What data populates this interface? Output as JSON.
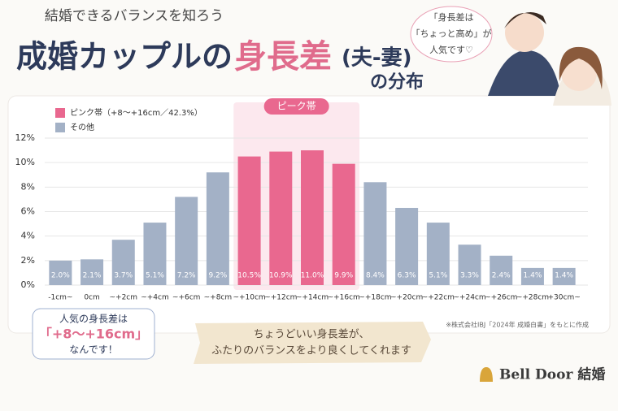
{
  "header": {
    "subtitle": "結婚できるバランスを知ろう",
    "title": "成婚カップルの",
    "title_accent": "身長差",
    "title_paren": "(夫-妻)",
    "title_end": "の分布"
  },
  "speech_bubble": [
    "「身長差は",
    "「ちょっと高め」が",
    "人気です♡"
  ],
  "chart_data": {
    "type": "bar",
    "band_label": "ピーク帯",
    "legend": [
      {
        "name": "ピンク帯（+8〜+16cm／42.3%）",
        "color": "#e9688f"
      },
      {
        "name": "その他",
        "color": "#a3b1c6"
      }
    ],
    "categories": [
      "-1cm~",
      "0cm",
      "~+2cm",
      "~+4cm",
      "~+6cm",
      "~+8cm",
      "~+10cm",
      "~+12cm",
      "~+14cm",
      "~+16cm",
      "~+18cm",
      "~+20cm",
      "~+22cm",
      "~+24cm",
      "~+26cm",
      "~+28cm",
      "+30cm~"
    ],
    "values": [
      2.0,
      2.1,
      3.7,
      5.1,
      7.2,
      9.2,
      10.5,
      10.9,
      11.0,
      9.9,
      8.4,
      6.3,
      5.1,
      3.3,
      2.4,
      1.4,
      1.4
    ],
    "value_labels": [
      "2.0%",
      "2.1%",
      "3.7%",
      "5.1%",
      "7.2%",
      "9.2%",
      "10.5%",
      "10.9%",
      "11.0%",
      "9.9%",
      "8.4%",
      "6.3%",
      "5.1%",
      "3.3%",
      "2.4%",
      "1.4%",
      "1.4%"
    ],
    "colors": [
      "#a3b1c6",
      "#a3b1c6",
      "#a3b1c6",
      "#a3b1c6",
      "#a3b1c6",
      "#a3b1c6",
      "#e9688f",
      "#e9688f",
      "#e9688f",
      "#e9688f",
      "#a3b1c6",
      "#a3b1c6",
      "#a3b1c6",
      "#a3b1c6",
      "#a3b1c6",
      "#a3b1c6",
      "#a3b1c6"
    ],
    "ylim": [
      0,
      12
    ],
    "yticks": [
      {
        "value": 0,
        "label": "0%"
      },
      {
        "value": 2,
        "label": "2%"
      },
      {
        "value": 4,
        "label": "4%"
      },
      {
        "value": 6,
        "label": "6%"
      },
      {
        "value": 8,
        "label": "8%"
      },
      {
        "value": 10,
        "label": "10%"
      },
      {
        "value": 12,
        "label": "12%"
      }
    ],
    "grid": true
  },
  "callout": [
    "人気の身長差は",
    "「+8〜+16cm」",
    "なんです！"
  ],
  "banner": [
    "ちょうどいい身長差が、",
    "ふたりのバランスをより良くしてくれます"
  ],
  "source": "※株式会社IBJ「2024年 成婚白書」をもとに作成",
  "logo": "Bell Door 結婚"
}
